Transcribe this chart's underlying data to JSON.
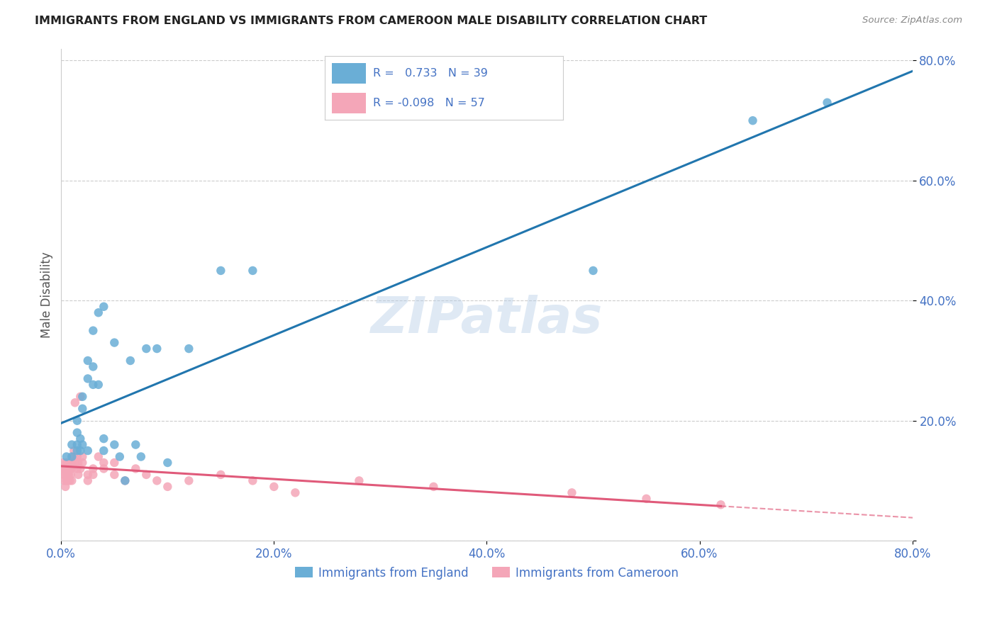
{
  "title": "IMMIGRANTS FROM ENGLAND VS IMMIGRANTS FROM CAMEROON MALE DISABILITY CORRELATION CHART",
  "source": "Source: ZipAtlas.com",
  "ylabel": "Male Disability",
  "xlim": [
    0.0,
    0.8
  ],
  "ylim": [
    0.0,
    0.82
  ],
  "xticks": [
    0.0,
    0.2,
    0.4,
    0.6,
    0.8
  ],
  "yticks": [
    0.0,
    0.2,
    0.4,
    0.6,
    0.8
  ],
  "xticklabels": [
    "0.0%",
    "20.0%",
    "40.0%",
    "60.0%",
    "80.0%"
  ],
  "yticklabels": [
    "",
    "20.0%",
    "40.0%",
    "60.0%",
    "80.0%"
  ],
  "england_color": "#6aaed6",
  "cameroon_color": "#f4a6b8",
  "england_R": 0.733,
  "england_N": 39,
  "cameroon_R": -0.098,
  "cameroon_N": 57,
  "england_line_color": "#2176ae",
  "cameroon_line_color": "#e05a7a",
  "watermark": "ZIPatlas",
  "england_x": [
    0.005,
    0.01,
    0.01,
    0.015,
    0.015,
    0.015,
    0.015,
    0.018,
    0.018,
    0.02,
    0.02,
    0.02,
    0.025,
    0.025,
    0.025,
    0.03,
    0.03,
    0.03,
    0.035,
    0.035,
    0.04,
    0.04,
    0.04,
    0.05,
    0.05,
    0.055,
    0.06,
    0.065,
    0.07,
    0.075,
    0.08,
    0.09,
    0.1,
    0.12,
    0.15,
    0.18,
    0.5,
    0.65,
    0.72
  ],
  "england_y": [
    0.14,
    0.14,
    0.16,
    0.15,
    0.16,
    0.18,
    0.2,
    0.15,
    0.17,
    0.16,
    0.22,
    0.24,
    0.15,
    0.27,
    0.3,
    0.26,
    0.29,
    0.35,
    0.26,
    0.38,
    0.39,
    0.15,
    0.17,
    0.33,
    0.16,
    0.14,
    0.1,
    0.3,
    0.16,
    0.14,
    0.32,
    0.32,
    0.13,
    0.32,
    0.45,
    0.45,
    0.45,
    0.7,
    0.73
  ],
  "cameroon_x": [
    0.001,
    0.002,
    0.002,
    0.003,
    0.003,
    0.004,
    0.004,
    0.005,
    0.005,
    0.005,
    0.006,
    0.006,
    0.007,
    0.007,
    0.008,
    0.008,
    0.009,
    0.009,
    0.01,
    0.01,
    0.01,
    0.012,
    0.012,
    0.013,
    0.013,
    0.015,
    0.015,
    0.016,
    0.016,
    0.018,
    0.018,
    0.02,
    0.02,
    0.025,
    0.025,
    0.03,
    0.03,
    0.035,
    0.04,
    0.04,
    0.05,
    0.05,
    0.06,
    0.07,
    0.08,
    0.09,
    0.1,
    0.12,
    0.15,
    0.18,
    0.2,
    0.22,
    0.28,
    0.35,
    0.48,
    0.55,
    0.62
  ],
  "cameroon_y": [
    0.12,
    0.11,
    0.13,
    0.1,
    0.12,
    0.09,
    0.11,
    0.1,
    0.12,
    0.13,
    0.11,
    0.1,
    0.12,
    0.11,
    0.13,
    0.1,
    0.12,
    0.11,
    0.13,
    0.12,
    0.1,
    0.15,
    0.14,
    0.23,
    0.13,
    0.12,
    0.14,
    0.13,
    0.11,
    0.24,
    0.12,
    0.13,
    0.14,
    0.11,
    0.1,
    0.12,
    0.11,
    0.14,
    0.13,
    0.12,
    0.11,
    0.13,
    0.1,
    0.12,
    0.11,
    0.1,
    0.09,
    0.1,
    0.11,
    0.1,
    0.09,
    0.08,
    0.1,
    0.09,
    0.08,
    0.07,
    0.06
  ],
  "background_color": "#ffffff",
  "grid_color": "#cccccc",
  "title_color": "#222222",
  "axis_label_color": "#555555",
  "tick_color": "#4472c4",
  "legend_R_color_england": "#6aaed6",
  "legend_R_color_cameroon": "#f4a6b8"
}
